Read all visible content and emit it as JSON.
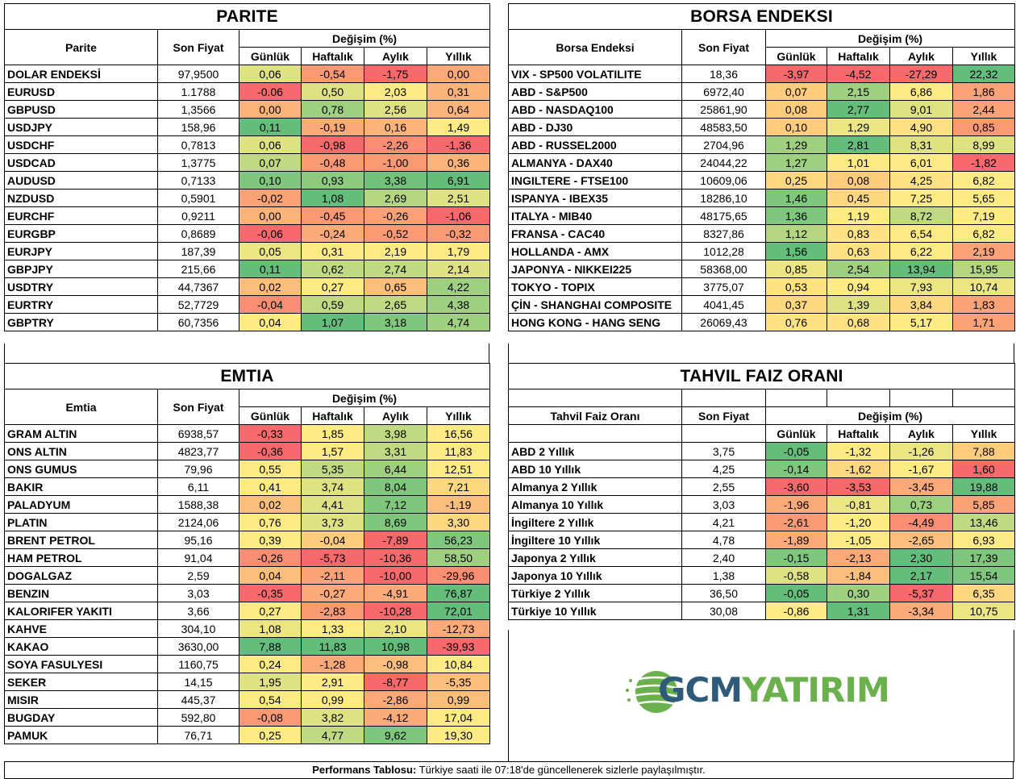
{
  "colors": {
    "red": "#f8696b",
    "orange_red": "#fa8e72",
    "orange": "#fcaa78",
    "light_orange": "#fdc67b",
    "yellow": "#ffeb84",
    "yellow_green": "#dfe283",
    "light_green": "#c1da81",
    "green": "#9fd07f",
    "dark_green": "#63be7b"
  },
  "headers": {
    "son_fiyat": "Son Fiyat",
    "degisim": "Değişim (%)",
    "gunluk": "Günlük",
    "haftalik": "Haftalık",
    "aylik": "Aylık",
    "yillik": "Yıllık"
  },
  "parite": {
    "title": "PARITE",
    "col_label": "Parite",
    "rows": [
      {
        "name": "DOLAR ENDEKSİ",
        "price": "97,9500",
        "d": "0,06",
        "w": "-0,54",
        "m": "-1,75",
        "y": "0,00",
        "c": [
          "#dfe283",
          "#fa9a74",
          "#f8696b",
          "#fcaa78"
        ]
      },
      {
        "name": "EURUSD",
        "price": "1.1788",
        "d": "-0.06",
        "w": "0,50",
        "m": "2,03",
        "y": "0,31",
        "c": [
          "#f8696b",
          "#dfe283",
          "#ffeb84",
          "#fcb479"
        ]
      },
      {
        "name": "GBPUSD",
        "price": "1,3566",
        "d": "0,00",
        "w": "0,78",
        "m": "2,56",
        "y": "0,64",
        "c": [
          "#fcb479",
          "#9fd07f",
          "#dfe283",
          "#fcb479"
        ]
      },
      {
        "name": "USDJPY",
        "price": "158,96",
        "d": "0,11",
        "w": "-0,19",
        "m": "0,16",
        "y": "1,49",
        "c": [
          "#63be7b",
          "#fcaa78",
          "#fcb479",
          "#ffeb84"
        ]
      },
      {
        "name": "USDCHF",
        "price": "0,7813",
        "d": "0,06",
        "w": "-0,98",
        "m": "-2,26",
        "y": "-1,36",
        "c": [
          "#dfe283",
          "#f8696b",
          "#fa8e72",
          "#f8696b"
        ]
      },
      {
        "name": "USDCAD",
        "price": "1,3775",
        "d": "0,07",
        "w": "-0,48",
        "m": "-1,00",
        "y": "0,36",
        "c": [
          "#c1da81",
          "#fa9a74",
          "#fa9a74",
          "#fcb479"
        ]
      },
      {
        "name": "AUDUSD",
        "price": "0,7133",
        "d": "0,10",
        "w": "0,93",
        "m": "3,38",
        "y": "6,91",
        "c": [
          "#7ec77d",
          "#8ccb7e",
          "#72c27c",
          "#63be7b"
        ]
      },
      {
        "name": "NZDUSD",
        "price": "0,5901",
        "d": "-0,02",
        "w": "1,08",
        "m": "2,69",
        "y": "2,51",
        "c": [
          "#fba276",
          "#63be7b",
          "#b5d680",
          "#dfe283"
        ]
      },
      {
        "name": "EURCHF",
        "price": "0,9211",
        "d": "0,00",
        "w": "-0,45",
        "m": "-0,26",
        "y": "-1,06",
        "c": [
          "#fcb479",
          "#fa9a74",
          "#fba276",
          "#f8696b"
        ]
      },
      {
        "name": "EURGBP",
        "price": "0,8689",
        "d": "-0,06",
        "w": "-0,24",
        "m": "-0,52",
        "y": "-0,32",
        "c": [
          "#f8696b",
          "#fcaa78",
          "#fa9a74",
          "#fa9a74"
        ]
      },
      {
        "name": "EURJPY",
        "price": "187,39",
        "d": "0,05",
        "w": "0,31",
        "m": "2,19",
        "y": "1,79",
        "c": [
          "#ebe584",
          "#ffeb84",
          "#ffeb84",
          "#ffeb84"
        ]
      },
      {
        "name": "GBPJPY",
        "price": "215,66",
        "d": "0,11",
        "w": "0,62",
        "m": "2,74",
        "y": "2,14",
        "c": [
          "#63be7b",
          "#c1da81",
          "#c1da81",
          "#dfe283"
        ]
      },
      {
        "name": "USDTRY",
        "price": "44,7367",
        "d": "0,02",
        "w": "0,27",
        "m": "0,65",
        "y": "4,22",
        "c": [
          "#fcbe7b",
          "#ffeb84",
          "#fcbe7b",
          "#9fd07f"
        ]
      },
      {
        "name": "EURTRY",
        "price": "52,7729",
        "d": "-0,04",
        "w": "0,59",
        "m": "2,65",
        "y": "4,38",
        "c": [
          "#fa8e72",
          "#c1da81",
          "#c1da81",
          "#9fd07f"
        ]
      },
      {
        "name": "GBPTRY",
        "price": "60,7356",
        "d": "0,04",
        "w": "1,07",
        "m": "3,18",
        "y": "4,74",
        "c": [
          "#ffeb84",
          "#63be7b",
          "#7ec77d",
          "#9fd07f"
        ]
      }
    ]
  },
  "borsa": {
    "title": "BORSA ENDEKSI",
    "col_label": "Borsa Endeksi",
    "rows": [
      {
        "name": "VIX  - SP500 VOLATILITE",
        "price": "18,36",
        "d": "-3,97",
        "w": "-4,52",
        "m": "-27,29",
        "y": "22,32",
        "c": [
          "#f8696b",
          "#f8696b",
          "#f8696b",
          "#63be7b"
        ]
      },
      {
        "name": "ABD - S&P500",
        "price": "6972,40",
        "d": "0,07",
        "w": "2,15",
        "m": "6,86",
        "y": "1,86",
        "c": [
          "#fdcc7d",
          "#9fd07f",
          "#ffeb84",
          "#fba276"
        ]
      },
      {
        "name": "ABD - NASDAQ100",
        "price": "25861,90",
        "d": "0,08",
        "w": "2,77",
        "m": "9,01",
        "y": "2,44",
        "c": [
          "#fdcc7d",
          "#63be7b",
          "#dfe283",
          "#fba276"
        ]
      },
      {
        "name": "ABD - DJ30",
        "price": "48583,50",
        "d": "0,10",
        "w": "1,29",
        "m": "4,90",
        "y": "0,85",
        "c": [
          "#fdcc7d",
          "#ebe584",
          "#ffe383",
          "#fa9a74"
        ]
      },
      {
        "name": "ABD - RUSSEL2000",
        "price": "2704,96",
        "d": "1,29",
        "w": "2,81",
        "m": "8,31",
        "y": "8,99",
        "c": [
          "#9fd07f",
          "#63be7b",
          "#dfe283",
          "#dfe283"
        ]
      },
      {
        "name": "ALMANYA - DAX40",
        "price": "24044,22",
        "d": "1,27",
        "w": "1,01",
        "m": "6,01",
        "y": "-1,82",
        "c": [
          "#9fd07f",
          "#ffeb84",
          "#ffeb84",
          "#f8696b"
        ]
      },
      {
        "name": "INGILTERE - FTSE100",
        "price": "10609,06",
        "d": "0,25",
        "w": "0,08",
        "m": "4,25",
        "y": "6,82",
        "c": [
          "#fdd880",
          "#fdcc7d",
          "#ffe383",
          "#ffeb84"
        ]
      },
      {
        "name": "ISPANYA - IBEX35",
        "price": "18286,10",
        "d": "1,46",
        "w": "0,45",
        "m": "7,25",
        "y": "5,65",
        "c": [
          "#7ec77d",
          "#fdd880",
          "#ffeb84",
          "#ffeb84"
        ]
      },
      {
        "name": "ITALYA - MIB40",
        "price": "48175,65",
        "d": "1,36",
        "w": "1,19",
        "m": "8,72",
        "y": "7,19",
        "c": [
          "#7ec77d",
          "#ffeb84",
          "#c1da81",
          "#ffeb84"
        ]
      },
      {
        "name": "FRANSA - CAC40",
        "price": "8327,86",
        "d": "1,12",
        "w": "0,83",
        "m": "6,54",
        "y": "6,82",
        "c": [
          "#b5d680",
          "#ffe383",
          "#ffeb84",
          "#ffeb84"
        ]
      },
      {
        "name": "HOLLANDA - AMX",
        "price": "1012,28",
        "d": "1,56",
        "w": "0,63",
        "m": "6,22",
        "y": "2,19",
        "c": [
          "#63be7b",
          "#ffe383",
          "#ffeb84",
          "#fba276"
        ]
      },
      {
        "name": "JAPONYA - NIKKEI225",
        "price": "58368,00",
        "d": "0,85",
        "w": "2,54",
        "m": "13,94",
        "y": "15,95",
        "c": [
          "#ebe584",
          "#9fd07f",
          "#63be7b",
          "#b5d680"
        ]
      },
      {
        "name": "TOKYO - TOPIX",
        "price": "3775,07",
        "d": "0,53",
        "w": "0,94",
        "m": "7,93",
        "y": "10,74",
        "c": [
          "#ffe383",
          "#ffeb84",
          "#ebe584",
          "#ebe584"
        ]
      },
      {
        "name": "ÇİN - SHANGHAI COMPOSITE",
        "price": "4041,45",
        "d": "0,37",
        "w": "1,39",
        "m": "3,84",
        "y": "1,83",
        "c": [
          "#fdd880",
          "#dfe283",
          "#fdd880",
          "#fba276"
        ]
      },
      {
        "name": "HONG KONG - HANG SENG",
        "price": "26069,43",
        "d": "0,76",
        "w": "0,68",
        "m": "5,17",
        "y": "1,71",
        "c": [
          "#ffe383",
          "#ffe383",
          "#ffeb84",
          "#fba276"
        ]
      }
    ]
  },
  "emtia": {
    "title": "EMTIA",
    "col_label": "Emtia",
    "rows": [
      {
        "name": "GRAM ALTIN",
        "price": "6938,57",
        "d": "-0,33",
        "w": "1,85",
        "m": "3,98",
        "y": "16,56",
        "c": [
          "#f8696b",
          "#ffeb84",
          "#c1da81",
          "#ffeb84"
        ]
      },
      {
        "name": "ONS ALTIN",
        "price": "4823,77",
        "d": "-0,36",
        "w": "1,57",
        "m": "3,31",
        "y": "11,83",
        "c": [
          "#f8696b",
          "#ffeb84",
          "#c1da81",
          "#ffeb84"
        ]
      },
      {
        "name": "ONS GUMUS",
        "price": "79,96",
        "d": "0,55",
        "w": "5,35",
        "m": "6,44",
        "y": "12,51",
        "c": [
          "#ffeb84",
          "#c1da81",
          "#9fd07f",
          "#ffeb84"
        ]
      },
      {
        "name": "BAKIR",
        "price": "6,11",
        "d": "0,41",
        "w": "3,74",
        "m": "8,04",
        "y": "7,21",
        "c": [
          "#ffeb84",
          "#dfe283",
          "#7ec77d",
          "#fdd880"
        ]
      },
      {
        "name": "PALADYUM",
        "price": "1588,38",
        "d": "0,02",
        "w": "4,41",
        "m": "7,12",
        "y": "-1,19",
        "c": [
          "#fcbe7b",
          "#dfe283",
          "#7ec77d",
          "#fcbe7b"
        ]
      },
      {
        "name": "PLATIN",
        "price": "2124,06",
        "d": "0,76",
        "w": "3,73",
        "m": "8,69",
        "y": "3,30",
        "c": [
          "#ffeb84",
          "#dfe283",
          "#7ec77d",
          "#fdd880"
        ]
      },
      {
        "name": "BRENT PETROL",
        "price": "95,16",
        "d": "0,39",
        "w": "-0,04",
        "m": "-7,89",
        "y": "56,23",
        "c": [
          "#ffeb84",
          "#fdcc7d",
          "#f8696b",
          "#7ec77d"
        ]
      },
      {
        "name": "HAM PETROL",
        "price": "91,04",
        "d": "-0,26",
        "w": "-5,73",
        "m": "-10,36",
        "y": "58,50",
        "c": [
          "#fa8e72",
          "#f8696b",
          "#f8696b",
          "#9fd07f"
        ]
      },
      {
        "name": "DOGALGAZ",
        "price": "2,59",
        "d": "0,04",
        "w": "-2,11",
        "m": "-10,00",
        "y": "-29,96",
        "c": [
          "#fcbe7b",
          "#fba276",
          "#f8696b",
          "#fa8e72"
        ]
      },
      {
        "name": "BENZIN",
        "price": "3,03",
        "d": "-0,35",
        "w": "-0,27",
        "m": "-4,91",
        "y": "76,87",
        "c": [
          "#f8696b",
          "#fcaa78",
          "#fcaa78",
          "#63be7b"
        ]
      },
      {
        "name": "KALORIFER YAKITI",
        "price": "3,66",
        "d": "0,27",
        "w": "-2,83",
        "m": "-10,28",
        "y": "72,01",
        "c": [
          "#ffeb84",
          "#fa9a74",
          "#f8696b",
          "#63be7b"
        ]
      },
      {
        "name": "KAHVE",
        "price": "304,10",
        "d": "1,08",
        "w": "1,33",
        "m": "2,10",
        "y": "-12,73",
        "c": [
          "#ebe584",
          "#ffeb84",
          "#ebe584",
          "#fcaa78"
        ]
      },
      {
        "name": "KAKAO",
        "price": "3630,00",
        "d": "7,88",
        "w": "11,83",
        "m": "10,98",
        "y": "-39,93",
        "c": [
          "#63be7b",
          "#63be7b",
          "#63be7b",
          "#f8696b"
        ]
      },
      {
        "name": "SOYA FASULYESI",
        "price": "1160,75",
        "d": "0,24",
        "w": "-1,28",
        "m": "-0,98",
        "y": "10,84",
        "c": [
          "#ffeb84",
          "#fcaa78",
          "#fcbe7b",
          "#ffeb84"
        ]
      },
      {
        "name": "SEKER",
        "price": "14,15",
        "d": "1,95",
        "w": "2,91",
        "m": "-8,77",
        "y": "-5,35",
        "c": [
          "#dfe283",
          "#ffeb84",
          "#f8696b",
          "#fcbe7b"
        ]
      },
      {
        "name": "MISIR",
        "price": "445,37",
        "d": "0,54",
        "w": "0,99",
        "m": "-2,86",
        "y": "0,99",
        "c": [
          "#ffeb84",
          "#ffeb84",
          "#fcaa78",
          "#fcbe7b"
        ]
      },
      {
        "name": "BUGDAY",
        "price": "592,80",
        "d": "-0,08",
        "w": "3,82",
        "m": "-4,12",
        "y": "17,04",
        "c": [
          "#fa9a74",
          "#dfe283",
          "#fcaa78",
          "#ffeb84"
        ]
      },
      {
        "name": "PAMUK",
        "price": "76,71",
        "d": "0,25",
        "w": "4,77",
        "m": "9,62",
        "y": "19,30",
        "c": [
          "#ffeb84",
          "#c1da81",
          "#7ec77d",
          "#ffeb84"
        ]
      }
    ]
  },
  "tahvil": {
    "title": "TAHVIL FAIZ ORANI",
    "col_label": "Tahvil Faiz Oranı",
    "rows": [
      {
        "name": "ABD 2 Yıllık",
        "price": "3,75",
        "d": "-0,05",
        "w": "-1,32",
        "m": "-1,26",
        "y": "7,88",
        "c": [
          "#63be7b",
          "#ffeb84",
          "#ebe584",
          "#fdcc7d"
        ]
      },
      {
        "name": "ABD 10 Yıllık",
        "price": "4,25",
        "d": "-0,14",
        "w": "-1,62",
        "m": "-1,67",
        "y": "1,60",
        "c": [
          "#7ec77d",
          "#fdd880",
          "#ffeb84",
          "#f8696b"
        ]
      },
      {
        "name": "Almanya 2 Yıllık",
        "price": "2,55",
        "d": "-3,60",
        "w": "-3,53",
        "m": "-3,45",
        "y": "19,88",
        "c": [
          "#f8696b",
          "#f8696b",
          "#fcaa78",
          "#63be7b"
        ]
      },
      {
        "name": "Almanya 10 Yıllık",
        "price": "3,03",
        "d": "-1,96",
        "w": "-0,81",
        "m": "0,73",
        "y": "5,85",
        "c": [
          "#fcaa78",
          "#ebe584",
          "#9fd07f",
          "#fba276"
        ]
      },
      {
        "name": "İngiltere 2 Yıllık",
        "price": "4,21",
        "d": "-2,61",
        "w": "-1,20",
        "m": "-4,49",
        "y": "13,46",
        "c": [
          "#fa9a74",
          "#ffeb84",
          "#fa8e72",
          "#c1da81"
        ]
      },
      {
        "name": "İngiltere 10 Yıllık",
        "price": "4,78",
        "d": "-1,89",
        "w": "-1,05",
        "m": "-2,65",
        "y": "6,93",
        "c": [
          "#fcaa78",
          "#ffeb84",
          "#fcbe7b",
          "#ffeb84"
        ]
      },
      {
        "name": "Japonya 2 Yıllık",
        "price": "2,40",
        "d": "-0,15",
        "w": "-2,13",
        "m": "2,30",
        "y": "17,39",
        "c": [
          "#7ec77d",
          "#fcaa78",
          "#63be7b",
          "#7ec77d"
        ]
      },
      {
        "name": "Japonya 10 Yıllık",
        "price": "1,38",
        "d": "-0,58",
        "w": "-1,84",
        "m": "2,17",
        "y": "15,54",
        "c": [
          "#dfe283",
          "#fcbe7b",
          "#63be7b",
          "#7ec77d"
        ]
      },
      {
        "name": "Türkiye 2 Yıllık",
        "price": "36,50",
        "d": "-0,05",
        "w": "0,30",
        "m": "-5,37",
        "y": "6,35",
        "c": [
          "#63be7b",
          "#9fd07f",
          "#f8696b",
          "#fdd880"
        ]
      },
      {
        "name": "Türkiye 10 Yıllık",
        "price": "30,08",
        "d": "-0,86",
        "w": "1,31",
        "m": "-3,34",
        "y": "10,75",
        "c": [
          "#ffeb84",
          "#63be7b",
          "#fcaa78",
          "#ebe584"
        ]
      }
    ]
  },
  "logo": {
    "part1": "GCM",
    "part2": "YATIRIM"
  },
  "footer": {
    "bold": "Performans Tablosu:",
    "text": " Türkiye saati ile 07:18'de güncellenerek sizlerle paylaşılmıştır."
  }
}
